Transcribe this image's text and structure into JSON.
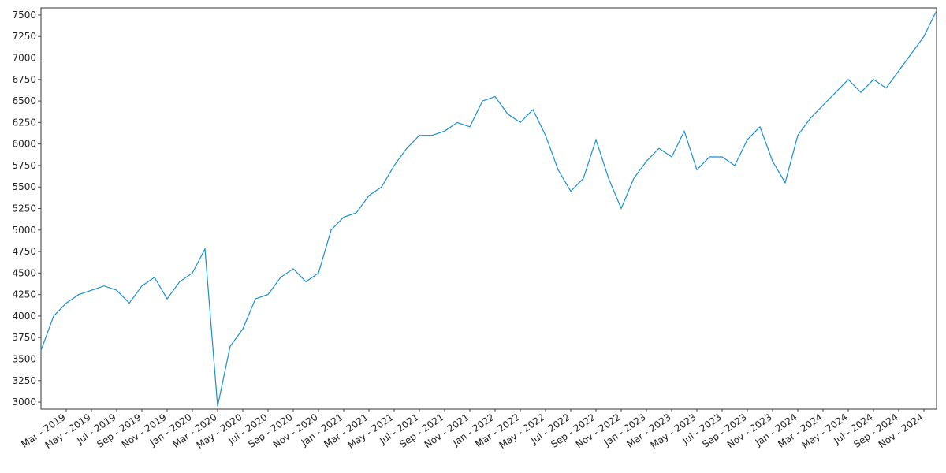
{
  "chart_data": {
    "type": "line",
    "x": [
      "2019-01",
      "2019-02",
      "2019-03",
      "2019-04",
      "2019-05",
      "2019-06",
      "2019-07",
      "2019-08",
      "2019-09",
      "2019-10",
      "2019-11",
      "2019-12",
      "2020-01",
      "2020-02",
      "2020-03",
      "2020-04",
      "2020-05",
      "2020-06",
      "2020-07",
      "2020-08",
      "2020-09",
      "2020-10",
      "2020-11",
      "2020-12",
      "2021-01",
      "2021-02",
      "2021-03",
      "2021-04",
      "2021-05",
      "2021-06",
      "2021-07",
      "2021-08",
      "2021-09",
      "2021-10",
      "2021-11",
      "2021-12",
      "2022-01",
      "2022-02",
      "2022-03",
      "2022-04",
      "2022-05",
      "2022-06",
      "2022-07",
      "2022-08",
      "2022-09",
      "2022-10",
      "2022-11",
      "2022-12",
      "2023-01",
      "2023-02",
      "2023-03",
      "2023-04",
      "2023-05",
      "2023-06",
      "2023-07",
      "2023-08",
      "2023-09",
      "2023-10",
      "2023-11",
      "2023-12",
      "2024-01",
      "2024-02",
      "2024-03",
      "2024-04",
      "2024-05",
      "2024-06",
      "2024-07",
      "2024-08",
      "2024-09",
      "2024-10",
      "2024-11",
      "2024-12"
    ],
    "series": [
      {
        "color": "#1a8fd0",
        "values": [
          3600,
          4000,
          4150,
          4250,
          4300,
          4350,
          4300,
          4150,
          4350,
          4450,
          4200,
          4400,
          4500,
          4780,
          2950,
          3650,
          3850,
          4200,
          4250,
          4450,
          4550,
          4400,
          4500,
          5000,
          5150,
          5200,
          5400,
          5500,
          5750,
          5950,
          6100,
          6100,
          6150,
          6250,
          6200,
          6500,
          6550,
          6350,
          6250,
          6400,
          6100,
          5700,
          5450,
          5600,
          6050,
          5600,
          5250,
          5600,
          5800,
          5950,
          5850,
          6150,
          5700,
          5850,
          5850,
          5750,
          6050,
          6200,
          5800,
          5550,
          6100,
          6300,
          6450,
          6600,
          6750,
          6600,
          6750,
          6650,
          6850,
          7050,
          7250,
          7550
        ]
      }
    ],
    "xlim": [
      "2019-01",
      "2024-12"
    ],
    "xticks": [
      {
        "value": "2019-03",
        "label": "Mar - 2019"
      },
      {
        "value": "2019-05",
        "label": "May - 2019"
      },
      {
        "value": "2019-07",
        "label": "Jul - 2019"
      },
      {
        "value": "2019-09",
        "label": "Sep - 2019"
      },
      {
        "value": "2019-11",
        "label": "Nov - 2019"
      },
      {
        "value": "2020-01",
        "label": "Jan - 2020"
      },
      {
        "value": "2020-03",
        "label": "Mar - 2020"
      },
      {
        "value": "2020-05",
        "label": "May - 2020"
      },
      {
        "value": "2020-07",
        "label": "Jul - 2020"
      },
      {
        "value": "2020-09",
        "label": "Sep - 2020"
      },
      {
        "value": "2020-11",
        "label": "Nov - 2020"
      },
      {
        "value": "2021-01",
        "label": "Jan - 2021"
      },
      {
        "value": "2021-03",
        "label": "Mar - 2021"
      },
      {
        "value": "2021-05",
        "label": "May - 2021"
      },
      {
        "value": "2021-07",
        "label": "Jul - 2021"
      },
      {
        "value": "2021-09",
        "label": "Sep - 2021"
      },
      {
        "value": "2021-11",
        "label": "Nov - 2021"
      },
      {
        "value": "2022-01",
        "label": "Jan - 2022"
      },
      {
        "value": "2022-03",
        "label": "Mar - 2022"
      },
      {
        "value": "2022-05",
        "label": "May - 2022"
      },
      {
        "value": "2022-07",
        "label": "Jul - 2022"
      },
      {
        "value": "2022-09",
        "label": "Sep - 2022"
      },
      {
        "value": "2022-11",
        "label": "Nov - 2022"
      },
      {
        "value": "2023-01",
        "label": "Jan - 2023"
      },
      {
        "value": "2023-03",
        "label": "Mar - 2023"
      },
      {
        "value": "2023-05",
        "label": "May - 2023"
      },
      {
        "value": "2023-07",
        "label": "Jul - 2023"
      },
      {
        "value": "2023-09",
        "label": "Sep - 2023"
      },
      {
        "value": "2023-11",
        "label": "Nov - 2023"
      },
      {
        "value": "2024-01",
        "label": "Jan - 2024"
      },
      {
        "value": "2024-03",
        "label": "Mar - 2024"
      },
      {
        "value": "2024-05",
        "label": "May - 2024"
      },
      {
        "value": "2024-07",
        "label": "Jul - 2024"
      },
      {
        "value": "2024-09",
        "label": "Sep - 2024"
      },
      {
        "value": "2024-11",
        "label": "Nov - 2024"
      }
    ],
    "ylim": [
      2918,
      7582
    ],
    "yticks": [
      3000,
      3250,
      3500,
      3750,
      4000,
      4250,
      4500,
      4750,
      5000,
      5250,
      5500,
      5750,
      6000,
      6250,
      6500,
      6750,
      7000,
      7250,
      7500
    ]
  }
}
